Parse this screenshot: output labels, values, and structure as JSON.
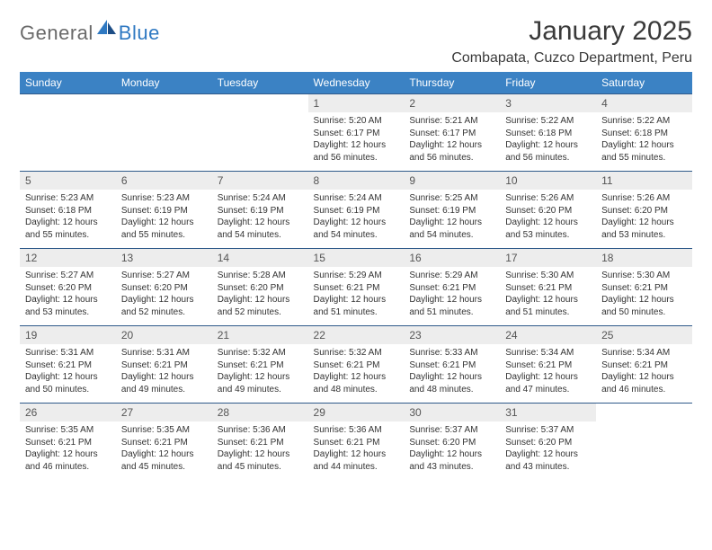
{
  "logo": {
    "general": "General",
    "blue": "Blue"
  },
  "title": "January 2025",
  "location": "Combapata, Cuzco Department, Peru",
  "colors": {
    "header_bg": "#3b82c4",
    "header_text": "#ffffff",
    "daynum_bg": "#ededed",
    "row_border": "#2f5a8a",
    "logo_grey": "#6a6a6a",
    "logo_blue": "#2f79c2",
    "body_text": "#333333",
    "page_bg": "#ffffff"
  },
  "weekdays": [
    "Sunday",
    "Monday",
    "Tuesday",
    "Wednesday",
    "Thursday",
    "Friday",
    "Saturday"
  ],
  "weeks": [
    [
      {
        "empty": true
      },
      {
        "empty": true
      },
      {
        "empty": true
      },
      {
        "n": "1",
        "sunrise": "5:20 AM",
        "sunset": "6:17 PM",
        "daylight": "12 hours and 56 minutes."
      },
      {
        "n": "2",
        "sunrise": "5:21 AM",
        "sunset": "6:17 PM",
        "daylight": "12 hours and 56 minutes."
      },
      {
        "n": "3",
        "sunrise": "5:22 AM",
        "sunset": "6:18 PM",
        "daylight": "12 hours and 56 minutes."
      },
      {
        "n": "4",
        "sunrise": "5:22 AM",
        "sunset": "6:18 PM",
        "daylight": "12 hours and 55 minutes."
      }
    ],
    [
      {
        "n": "5",
        "sunrise": "5:23 AM",
        "sunset": "6:18 PM",
        "daylight": "12 hours and 55 minutes."
      },
      {
        "n": "6",
        "sunrise": "5:23 AM",
        "sunset": "6:19 PM",
        "daylight": "12 hours and 55 minutes."
      },
      {
        "n": "7",
        "sunrise": "5:24 AM",
        "sunset": "6:19 PM",
        "daylight": "12 hours and 54 minutes."
      },
      {
        "n": "8",
        "sunrise": "5:24 AM",
        "sunset": "6:19 PM",
        "daylight": "12 hours and 54 minutes."
      },
      {
        "n": "9",
        "sunrise": "5:25 AM",
        "sunset": "6:19 PM",
        "daylight": "12 hours and 54 minutes."
      },
      {
        "n": "10",
        "sunrise": "5:26 AM",
        "sunset": "6:20 PM",
        "daylight": "12 hours and 53 minutes."
      },
      {
        "n": "11",
        "sunrise": "5:26 AM",
        "sunset": "6:20 PM",
        "daylight": "12 hours and 53 minutes."
      }
    ],
    [
      {
        "n": "12",
        "sunrise": "5:27 AM",
        "sunset": "6:20 PM",
        "daylight": "12 hours and 53 minutes."
      },
      {
        "n": "13",
        "sunrise": "5:27 AM",
        "sunset": "6:20 PM",
        "daylight": "12 hours and 52 minutes."
      },
      {
        "n": "14",
        "sunrise": "5:28 AM",
        "sunset": "6:20 PM",
        "daylight": "12 hours and 52 minutes."
      },
      {
        "n": "15",
        "sunrise": "5:29 AM",
        "sunset": "6:21 PM",
        "daylight": "12 hours and 51 minutes."
      },
      {
        "n": "16",
        "sunrise": "5:29 AM",
        "sunset": "6:21 PM",
        "daylight": "12 hours and 51 minutes."
      },
      {
        "n": "17",
        "sunrise": "5:30 AM",
        "sunset": "6:21 PM",
        "daylight": "12 hours and 51 minutes."
      },
      {
        "n": "18",
        "sunrise": "5:30 AM",
        "sunset": "6:21 PM",
        "daylight": "12 hours and 50 minutes."
      }
    ],
    [
      {
        "n": "19",
        "sunrise": "5:31 AM",
        "sunset": "6:21 PM",
        "daylight": "12 hours and 50 minutes."
      },
      {
        "n": "20",
        "sunrise": "5:31 AM",
        "sunset": "6:21 PM",
        "daylight": "12 hours and 49 minutes."
      },
      {
        "n": "21",
        "sunrise": "5:32 AM",
        "sunset": "6:21 PM",
        "daylight": "12 hours and 49 minutes."
      },
      {
        "n": "22",
        "sunrise": "5:32 AM",
        "sunset": "6:21 PM",
        "daylight": "12 hours and 48 minutes."
      },
      {
        "n": "23",
        "sunrise": "5:33 AM",
        "sunset": "6:21 PM",
        "daylight": "12 hours and 48 minutes."
      },
      {
        "n": "24",
        "sunrise": "5:34 AM",
        "sunset": "6:21 PM",
        "daylight": "12 hours and 47 minutes."
      },
      {
        "n": "25",
        "sunrise": "5:34 AM",
        "sunset": "6:21 PM",
        "daylight": "12 hours and 46 minutes."
      }
    ],
    [
      {
        "n": "26",
        "sunrise": "5:35 AM",
        "sunset": "6:21 PM",
        "daylight": "12 hours and 46 minutes."
      },
      {
        "n": "27",
        "sunrise": "5:35 AM",
        "sunset": "6:21 PM",
        "daylight": "12 hours and 45 minutes."
      },
      {
        "n": "28",
        "sunrise": "5:36 AM",
        "sunset": "6:21 PM",
        "daylight": "12 hours and 45 minutes."
      },
      {
        "n": "29",
        "sunrise": "5:36 AM",
        "sunset": "6:21 PM",
        "daylight": "12 hours and 44 minutes."
      },
      {
        "n": "30",
        "sunrise": "5:37 AM",
        "sunset": "6:20 PM",
        "daylight": "12 hours and 43 minutes."
      },
      {
        "n": "31",
        "sunrise": "5:37 AM",
        "sunset": "6:20 PM",
        "daylight": "12 hours and 43 minutes."
      },
      {
        "empty": true
      }
    ]
  ],
  "labels": {
    "sunrise": "Sunrise:",
    "sunset": "Sunset:",
    "daylight": "Daylight:"
  }
}
